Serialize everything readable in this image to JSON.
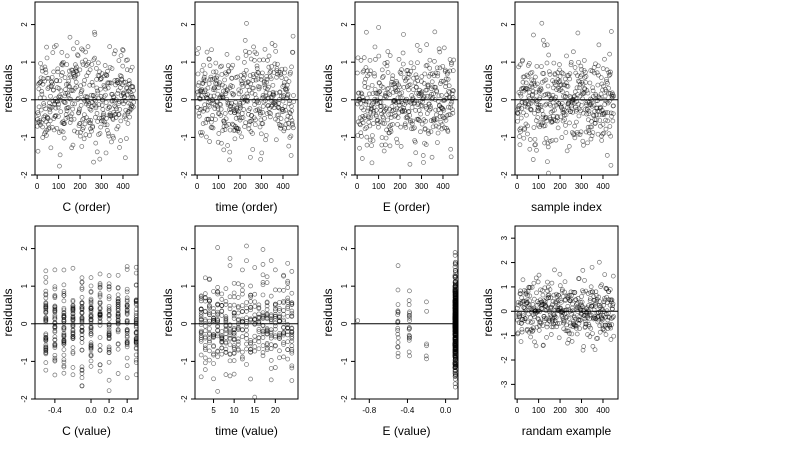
{
  "chart_data": [
    {
      "type": "scatter",
      "xlabel": "C (order)",
      "ylabel": "residuals",
      "xlim": [
        -10,
        470
      ],
      "ylim": [
        -2,
        2.6
      ],
      "xticks": [
        0,
        100,
        200,
        300,
        400
      ],
      "yticks": [
        -2,
        -1,
        0,
        1,
        2
      ],
      "ref_line_y": 0,
      "x_mode": "order",
      "n": 450,
      "seed": 11
    },
    {
      "type": "scatter",
      "xlabel": "time (order)",
      "ylabel": "residuals",
      "xlim": [
        -10,
        470
      ],
      "ylim": [
        -2,
        2.6
      ],
      "xticks": [
        0,
        100,
        200,
        300,
        400
      ],
      "yticks": [
        -2,
        -1,
        0,
        1,
        2
      ],
      "ref_line_y": 0,
      "x_mode": "order",
      "n": 450,
      "seed": 23
    },
    {
      "type": "scatter",
      "xlabel": "E (order)",
      "ylabel": "residuals",
      "xlim": [
        -10,
        470
      ],
      "ylim": [
        -2,
        2.6
      ],
      "xticks": [
        0,
        100,
        200,
        300,
        400
      ],
      "yticks": [
        -2,
        -1,
        0,
        1,
        2
      ],
      "ref_line_y": 0,
      "x_mode": "order",
      "n": 450,
      "seed": 37
    },
    {
      "type": "scatter",
      "xlabel": "sample index",
      "ylabel": "residuals",
      "xlim": [
        -10,
        470
      ],
      "ylim": [
        -2,
        2.6
      ],
      "xticks": [
        0,
        100,
        200,
        300,
        400
      ],
      "yticks": [
        -2,
        -1,
        0,
        1,
        2
      ],
      "ref_line_y": 0,
      "x_mode": "order",
      "n": 450,
      "seed": 41
    },
    {
      "type": "scatter",
      "xlabel": "C (value)",
      "ylabel": "residuals",
      "xlim": [
        -0.62,
        0.52
      ],
      "ylim": [
        -2,
        2.6
      ],
      "xticks": [
        -0.4,
        0,
        0.2,
        0.4
      ],
      "xtick_labels": [
        "-0.4",
        "0.0",
        "0.2",
        "0.4"
      ],
      "yticks": [
        -2,
        -1,
        0,
        1,
        2
      ],
      "ref_line_y": 0,
      "x_mode": "discrete",
      "x_levels": [
        -0.5,
        -0.4,
        -0.3,
        -0.2,
        -0.1,
        0,
        0.1,
        0.2,
        0.3,
        0.4,
        0.5
      ],
      "n": 450,
      "seed": 53
    },
    {
      "type": "scatter",
      "xlabel": "time (value)",
      "ylabel": "residuals",
      "xlim": [
        0.5,
        25.5
      ],
      "ylim": [
        -2,
        2.6
      ],
      "xticks": [
        5,
        10,
        15,
        20
      ],
      "yticks": [
        -2,
        -1,
        0,
        1,
        2
      ],
      "ref_line_y": 0,
      "x_mode": "discrete",
      "x_levels": [
        2,
        3,
        4,
        5,
        6,
        7,
        8,
        9,
        10,
        11,
        12,
        13,
        14,
        15,
        16,
        17,
        18,
        19,
        20,
        21,
        22,
        23,
        24
      ],
      "n": 450,
      "seed": 67
    },
    {
      "type": "scatter",
      "xlabel": "E (value)",
      "ylabel": "residuals",
      "xlim": [
        -0.95,
        0.13
      ],
      "ylim": [
        -2,
        2.6
      ],
      "xticks": [
        -0.8,
        -0.4,
        0
      ],
      "xtick_labels": [
        "-0.8",
        "-0.4",
        "0.0"
      ],
      "yticks": [
        -2,
        -1,
        0,
        1,
        2
      ],
      "ref_line_y": 0,
      "x_mode": "clustered",
      "x_clusters": [
        [
          -0.92,
          2
        ],
        [
          -0.5,
          20
        ],
        [
          -0.38,
          15
        ],
        [
          -0.2,
          12
        ],
        [
          0.1,
          400
        ]
      ],
      "n": 450,
      "seed": 79
    },
    {
      "type": "scatter",
      "xlabel": "randam example",
      "ylabel": "residuals",
      "xlim": [
        -10,
        470
      ],
      "ylim": [
        -3.6,
        3.5
      ],
      "xticks": [
        0,
        100,
        200,
        300,
        400
      ],
      "yticks": [
        -3,
        -2,
        -1,
        0,
        1,
        2,
        3
      ],
      "ref_line_y": 0,
      "x_mode": "order",
      "n": 450,
      "seed": 97
    }
  ]
}
